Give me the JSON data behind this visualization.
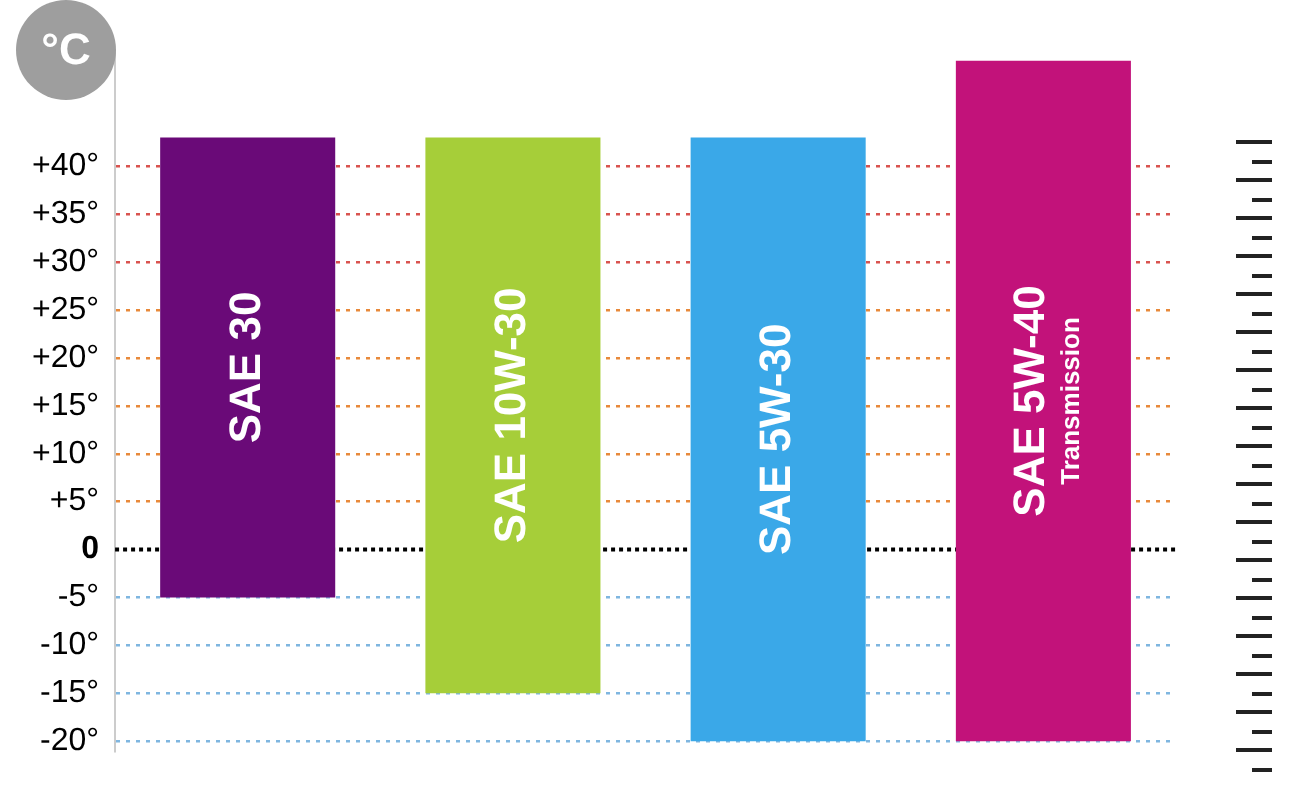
{
  "chart_data": {
    "type": "bar",
    "ylabel": "°C",
    "categories": [
      "SAE 30",
      "SAE 10W-30",
      "SAE 5W-30",
      "SAE 5W-40"
    ],
    "base": [
      -5,
      -15,
      -20,
      -20
    ],
    "values": [
      48,
      58,
      63,
      71
    ],
    "colors": [
      "#6a0a78",
      "#a6ce39",
      "#3aa8e8",
      "#c2127a"
    ],
    "annotations": [
      "Transmission"
    ],
    "ref_lines": [
      {
        "axis": "y",
        "value": 0,
        "color": "#000000",
        "line_style": "dotted"
      }
    ],
    "ylim": [
      -21,
      52
    ],
    "yticks": [
      {
        "value": 40,
        "label": "+40°"
      },
      {
        "value": 35,
        "label": "+35°"
      },
      {
        "value": 30,
        "label": "+30°"
      },
      {
        "value": 25,
        "label": "+25°"
      },
      {
        "value": 20,
        "label": "+20°"
      },
      {
        "value": 15,
        "label": "+15°"
      },
      {
        "value": 10,
        "label": "+10°"
      },
      {
        "value": 5,
        "label": "+5°"
      },
      0,
      {
        "value": -5,
        "label": "-5°"
      },
      {
        "value": -10,
        "label": "-10°"
      },
      {
        "value": -15,
        "label": "-15°"
      },
      {
        "value": -20,
        "label": "-20°"
      }
    ],
    "tick_labels": "y",
    "grid": "y",
    "legend": false
  }
}
